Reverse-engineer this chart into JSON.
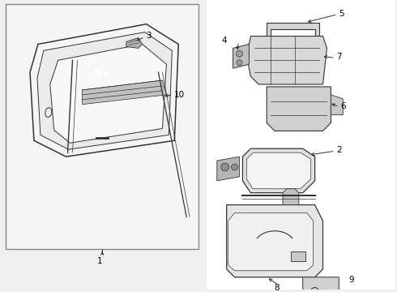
{
  "bg_color": "#f0f0f0",
  "box_bg": "#ffffff",
  "line_color": "#333333",
  "text_color": "#000000",
  "label_fs": 7.5,
  "right_bg": "#ffffff"
}
